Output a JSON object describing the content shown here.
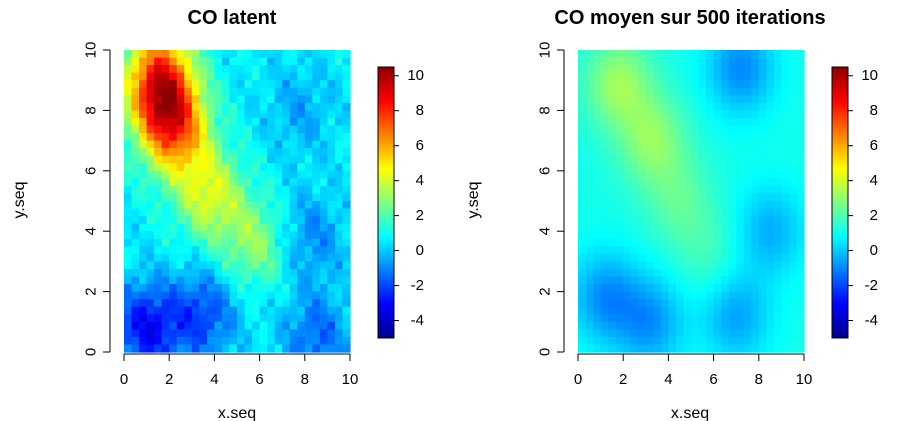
{
  "chart_data": [
    {
      "type": "heatmap",
      "title": "CO  latent",
      "xlabel": "x.seq",
      "ylabel": "y.seq",
      "xlim": [
        0,
        10
      ],
      "ylim": [
        0,
        10
      ],
      "xticks": [
        "0",
        "2",
        "4",
        "6",
        "8",
        "10"
      ],
      "yticks": [
        "0",
        "2",
        "4",
        "6",
        "8",
        "10"
      ],
      "zlim": [
        -5,
        10.5
      ],
      "colorbar_ticks": [
        "10",
        "8",
        "6",
        "4",
        "2",
        "0",
        "-2",
        "-4"
      ],
      "colorbar_values": [
        10,
        8,
        6,
        4,
        2,
        0,
        -2,
        -4
      ],
      "palette": [
        "#00008b",
        "#0000ff",
        "#0080ff",
        "#00ffff",
        "#80ff80",
        "#ffff00",
        "#ff8000",
        "#ff0000",
        "#8b0000"
      ],
      "hotspots": [
        {
          "x": 1.7,
          "y": 8.4,
          "z": 6.5
        },
        {
          "x": 2.3,
          "y": 7.2,
          "z": 5.5
        },
        {
          "x": 1.5,
          "y": 9.5,
          "z": 4.5
        },
        {
          "x": 3.8,
          "y": 5.2,
          "z": 4.0
        },
        {
          "x": 5.8,
          "y": 3.6,
          "z": 3.0
        },
        {
          "x": 1.0,
          "y": 0.8,
          "z": -3.0
        },
        {
          "x": 3.5,
          "y": 1.2,
          "z": -2.0
        },
        {
          "x": 8.5,
          "y": 0.5,
          "z": -1.5
        },
        {
          "x": 8.2,
          "y": 3.8,
          "z": -1.0
        },
        {
          "x": 7.8,
          "y": 8.0,
          "z": -0.5
        }
      ],
      "base_value": 0.6,
      "noise_amplitude": 1.0
    },
    {
      "type": "heatmap",
      "title": "CO moyen sur  500 iterations",
      "xlabel": "x.seq",
      "ylabel": "y.seq",
      "xlim": [
        0,
        10
      ],
      "ylim": [
        0,
        10
      ],
      "xticks": [
        "0",
        "2",
        "4",
        "6",
        "8",
        "10"
      ],
      "yticks": [
        "0",
        "2",
        "4",
        "6",
        "8",
        "10"
      ],
      "zlim": [
        -5,
        10.5
      ],
      "colorbar_ticks": [
        "10",
        "8",
        "6",
        "4",
        "2",
        "0",
        "-2",
        "-4"
      ],
      "colorbar_values": [
        10,
        8,
        6,
        4,
        2,
        0,
        -2,
        -4
      ],
      "palette": [
        "#00008b",
        "#0000ff",
        "#0080ff",
        "#00ffff",
        "#80ff80",
        "#ffff00",
        "#ff8000",
        "#ff0000",
        "#8b0000"
      ],
      "hotspots": [
        {
          "x": 1.8,
          "y": 8.9,
          "z": 3.2
        },
        {
          "x": 3.3,
          "y": 7.0,
          "z": 3.0
        },
        {
          "x": 4.5,
          "y": 5.0,
          "z": 2.2
        },
        {
          "x": 5.8,
          "y": 3.2,
          "z": 1.8
        },
        {
          "x": 7.2,
          "y": 9.4,
          "z": -1.0
        },
        {
          "x": 1.2,
          "y": 1.8,
          "z": -0.9
        },
        {
          "x": 3.2,
          "y": 1.0,
          "z": -0.8
        },
        {
          "x": 7.0,
          "y": 1.2,
          "z": -0.6
        },
        {
          "x": 8.5,
          "y": 4.0,
          "z": -0.4
        }
      ],
      "base_value": 1.1,
      "noise_amplitude": 0.0
    }
  ]
}
